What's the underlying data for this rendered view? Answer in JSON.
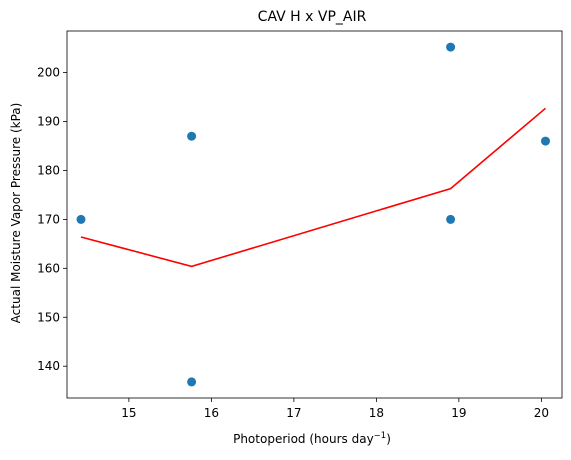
{
  "chart_data": {
    "type": "scatter",
    "title": "CAV H x VP_AIR",
    "xlabel": "Photoperiod (hours day",
    "xlabel_sup": "−1",
    "xlabel_end": ")",
    "ylabel": "Actual Moisture Vapor Pressure (kPa)",
    "xlim": [
      14.25,
      20.25
    ],
    "ylim": [
      133.5,
      208.5
    ],
    "xticks": [
      15,
      16,
      17,
      18,
      19,
      20
    ],
    "yticks": [
      140,
      150,
      160,
      170,
      180,
      190,
      200
    ],
    "grid": false,
    "legend": "none",
    "series": [
      {
        "kind": "scatter",
        "color": "#1f77b4",
        "x": [
          14.42,
          15.76,
          15.76,
          18.9,
          18.9,
          20.05
        ],
        "y": [
          170.0,
          187.0,
          136.8,
          205.2,
          170.0,
          186.0
        ]
      },
      {
        "kind": "line",
        "color": "#ff0000",
        "x": [
          14.42,
          15.76,
          18.9,
          20.05
        ],
        "y": [
          166.4,
          160.4,
          176.3,
          192.7
        ]
      }
    ]
  }
}
